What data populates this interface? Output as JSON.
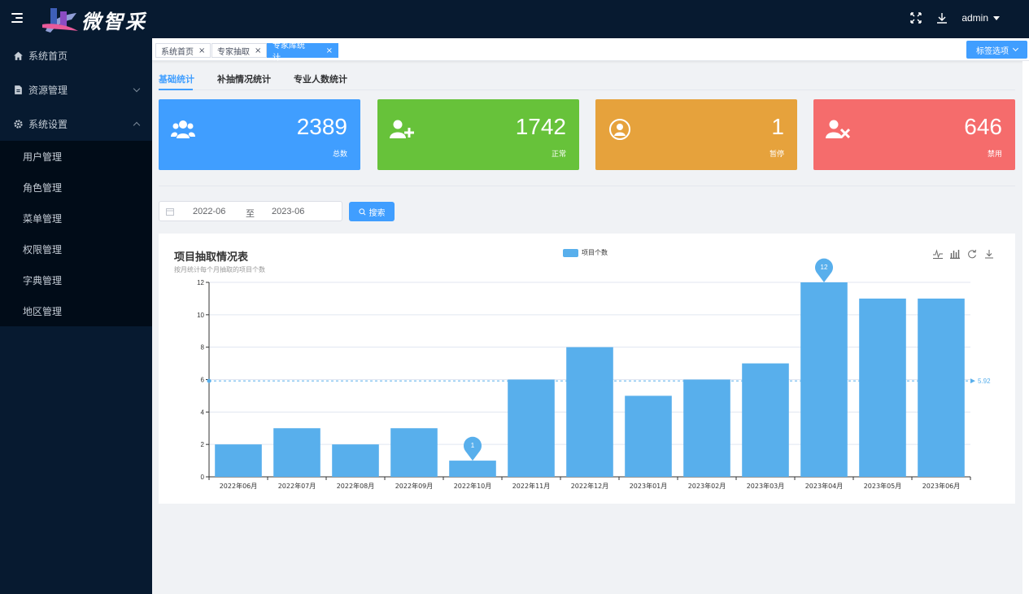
{
  "header": {
    "brand": "微智采",
    "user": "admin"
  },
  "sidebar": {
    "items": [
      {
        "label": "系统首页",
        "icon": "home-icon"
      },
      {
        "label": "资源管理",
        "icon": "document-icon"
      },
      {
        "label": "系统设置",
        "icon": "gear-icon"
      }
    ],
    "sub_items": [
      "用户管理",
      "角色管理",
      "菜单管理",
      "权限管理",
      "字典管理",
      "地区管理"
    ]
  },
  "tags": [
    {
      "label": "系统首页"
    },
    {
      "label": "专家抽取"
    },
    {
      "label": "专家库统计..."
    }
  ],
  "tag_options_label": "标签选项",
  "subtabs": [
    "基础统计",
    "补抽情况统计",
    "专业人数统计"
  ],
  "cards": [
    {
      "value": "2389",
      "label": "总数",
      "color": "#409eff",
      "icon": "users-group-icon"
    },
    {
      "value": "1742",
      "label": "正常",
      "color": "#67c23a",
      "icon": "user-add-icon"
    },
    {
      "value": "1",
      "label": "暂停",
      "color": "#e6a23c",
      "icon": "user-circle-icon"
    },
    {
      "value": "646",
      "label": "禁用",
      "color": "#f56c6c",
      "icon": "user-remove-icon"
    }
  ],
  "search": {
    "start": "2022-06",
    "separator": "至",
    "end": "2023-06",
    "button": "搜索"
  },
  "chart_data": {
    "type": "bar",
    "title": "项目抽取情况表",
    "subtitle": "按月统计每个月抽取的项目个数",
    "categories": [
      "2022年06月",
      "2022年07月",
      "2022年08月",
      "2022年09月",
      "2022年10月",
      "2022年11月",
      "2022年12月",
      "2023年01月",
      "2023年02月",
      "2023年03月",
      "2023年04月",
      "2023年05月",
      "2023年06月"
    ],
    "series": [
      {
        "name": "项目个数",
        "values": [
          2,
          3,
          2,
          3,
          1,
          6,
          8,
          5,
          6,
          7,
          12,
          11,
          11
        ]
      }
    ],
    "ylim": [
      0,
      12
    ],
    "yticks": [
      0,
      2,
      4,
      6,
      8,
      10,
      12
    ],
    "max_label": "12",
    "min_label": "1",
    "average_label": "5.92",
    "average": 5.92,
    "color": "#58afec",
    "legend_position": "top-center"
  }
}
